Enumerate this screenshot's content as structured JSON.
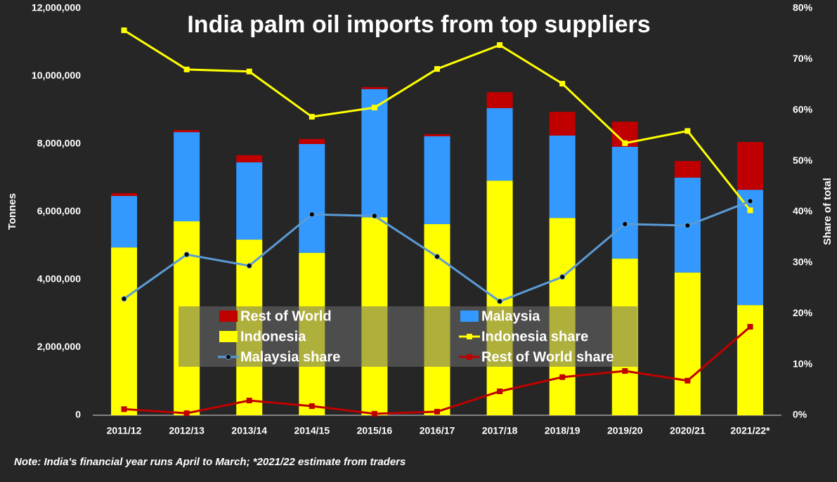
{
  "chart_data": {
    "type": "bar",
    "title": "India palm oil imports from top suppliers",
    "y_label": "Tonnes",
    "y2_label": "Share of total",
    "note": "Note: India's financial year runs April to March; *2021/22 estimate from traders",
    "categories": [
      "2011/12",
      "2012/13",
      "2013/14",
      "2014/15",
      "2015/16",
      "2016/17",
      "2017/18",
      "2018/19",
      "2019/20",
      "2020/21",
      "2021/22*"
    ],
    "ylim": [
      0,
      12000000
    ],
    "yticks": [
      0,
      {
        "value": 2000000,
        "label": "2,000,000"
      },
      {
        "value": 4000000,
        "label": "4,000,000"
      },
      {
        "value": 6000000,
        "label": "6,000,000"
      },
      {
        "value": 8000000,
        "label": "8,000,000"
      },
      {
        "value": 10000000,
        "label": "10,000,000"
      },
      {
        "value": 12000000,
        "label": "12,000,000"
      }
    ],
    "y2lim": [
      0,
      80
    ],
    "y2ticks": [
      {
        "value": 0,
        "label": "0%"
      },
      {
        "value": 10,
        "label": "10%"
      },
      {
        "value": 20,
        "label": "20%"
      },
      {
        "value": 30,
        "label": "30%"
      },
      {
        "value": 40,
        "label": "40%"
      },
      {
        "value": 50,
        "label": "50%"
      },
      {
        "value": 60,
        "label": "60%"
      },
      {
        "value": 70,
        "label": "70%"
      },
      {
        "value": 80,
        "label": "80%"
      }
    ],
    "stacked": true,
    "series": [
      {
        "name": "Indonesia",
        "type": "bar",
        "color": "#ffff00",
        "values": [
          4950000,
          5720000,
          5180000,
          4790000,
          5840000,
          5640000,
          6920000,
          5820000,
          4620000,
          4210000,
          3250000
        ]
      },
      {
        "name": "Malaysia",
        "type": "bar",
        "color": "#3399ff",
        "values": [
          1520000,
          2630000,
          2280000,
          3210000,
          3780000,
          2590000,
          2140000,
          2430000,
          3300000,
          2800000,
          3400000
        ]
      },
      {
        "name": "Rest of World",
        "type": "bar",
        "color": "#c00000",
        "values": [
          80000,
          60000,
          210000,
          150000,
          60000,
          60000,
          470000,
          700000,
          740000,
          490000,
          1410000
        ]
      },
      {
        "name": "Indonesia share",
        "type": "line",
        "axis": "y2",
        "color": "#ffff00",
        "marker": "square",
        "marker_color": "#ffff00",
        "values": [
          75.7,
          68.0,
          67.6,
          58.7,
          60.5,
          68.1,
          72.8,
          65.2,
          53.5,
          55.9,
          40.3
        ]
      },
      {
        "name": "Malaysia share",
        "type": "line",
        "axis": "y2",
        "color": "#5b9bd5",
        "marker": "circle",
        "marker_color": "#000000",
        "values": [
          22.9,
          31.6,
          29.4,
          39.5,
          39.2,
          31.2,
          22.4,
          27.2,
          37.6,
          37.3,
          42.1
        ]
      },
      {
        "name": "Rest of World share",
        "type": "line",
        "axis": "y2",
        "color": "#c00000",
        "marker": "square",
        "marker_color": "#c00000",
        "values": [
          1.2,
          0.4,
          2.9,
          1.8,
          0.3,
          0.7,
          4.7,
          7.5,
          8.7,
          6.8,
          17.4
        ]
      }
    ]
  }
}
